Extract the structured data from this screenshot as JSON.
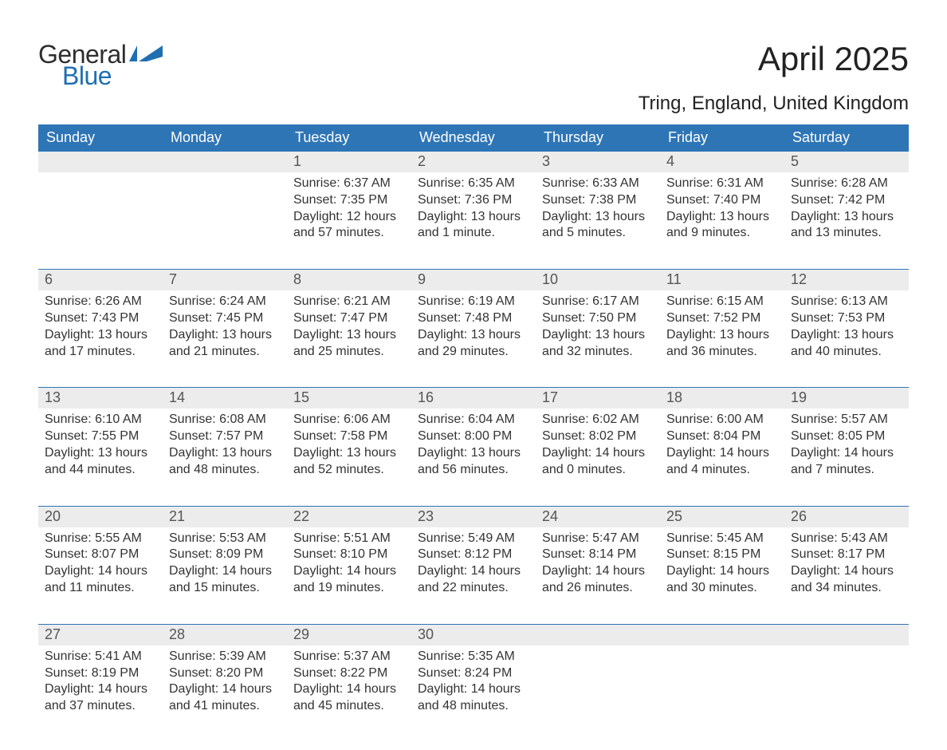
{
  "logo": {
    "line1": "General",
    "line2": "Blue",
    "text1_color": "#2e2e2e",
    "text2_color": "#1f6fb2",
    "icon_color": "#1f6fb2"
  },
  "title": {
    "month": "April 2025",
    "location": "Tring, England, United Kingdom"
  },
  "colors": {
    "header_bg": "#2e75b6",
    "header_text": "#ffffff",
    "daynum_bg": "#ececec",
    "daynum_text": "#555555",
    "body_text": "#333333",
    "page_bg": "#ffffff",
    "row_border": "#2e75b6"
  },
  "fonts": {
    "month_title_size": 42,
    "location_size": 24,
    "day_header_size": 18,
    "day_number_size": 18,
    "body_size": 16,
    "logo_size": 32
  },
  "day_headers": [
    "Sunday",
    "Monday",
    "Tuesday",
    "Wednesday",
    "Thursday",
    "Friday",
    "Saturday"
  ],
  "weeks": [
    [
      null,
      null,
      {
        "n": "1",
        "sunrise": "Sunrise: 6:37 AM",
        "sunset": "Sunset: 7:35 PM",
        "daylight": "Daylight: 12 hours and 57 minutes."
      },
      {
        "n": "2",
        "sunrise": "Sunrise: 6:35 AM",
        "sunset": "Sunset: 7:36 PM",
        "daylight": "Daylight: 13 hours and 1 minute."
      },
      {
        "n": "3",
        "sunrise": "Sunrise: 6:33 AM",
        "sunset": "Sunset: 7:38 PM",
        "daylight": "Daylight: 13 hours and 5 minutes."
      },
      {
        "n": "4",
        "sunrise": "Sunrise: 6:31 AM",
        "sunset": "Sunset: 7:40 PM",
        "daylight": "Daylight: 13 hours and 9 minutes."
      },
      {
        "n": "5",
        "sunrise": "Sunrise: 6:28 AM",
        "sunset": "Sunset: 7:42 PM",
        "daylight": "Daylight: 13 hours and 13 minutes."
      }
    ],
    [
      {
        "n": "6",
        "sunrise": "Sunrise: 6:26 AM",
        "sunset": "Sunset: 7:43 PM",
        "daylight": "Daylight: 13 hours and 17 minutes."
      },
      {
        "n": "7",
        "sunrise": "Sunrise: 6:24 AM",
        "sunset": "Sunset: 7:45 PM",
        "daylight": "Daylight: 13 hours and 21 minutes."
      },
      {
        "n": "8",
        "sunrise": "Sunrise: 6:21 AM",
        "sunset": "Sunset: 7:47 PM",
        "daylight": "Daylight: 13 hours and 25 minutes."
      },
      {
        "n": "9",
        "sunrise": "Sunrise: 6:19 AM",
        "sunset": "Sunset: 7:48 PM",
        "daylight": "Daylight: 13 hours and 29 minutes."
      },
      {
        "n": "10",
        "sunrise": "Sunrise: 6:17 AM",
        "sunset": "Sunset: 7:50 PM",
        "daylight": "Daylight: 13 hours and 32 minutes."
      },
      {
        "n": "11",
        "sunrise": "Sunrise: 6:15 AM",
        "sunset": "Sunset: 7:52 PM",
        "daylight": "Daylight: 13 hours and 36 minutes."
      },
      {
        "n": "12",
        "sunrise": "Sunrise: 6:13 AM",
        "sunset": "Sunset: 7:53 PM",
        "daylight": "Daylight: 13 hours and 40 minutes."
      }
    ],
    [
      {
        "n": "13",
        "sunrise": "Sunrise: 6:10 AM",
        "sunset": "Sunset: 7:55 PM",
        "daylight": "Daylight: 13 hours and 44 minutes."
      },
      {
        "n": "14",
        "sunrise": "Sunrise: 6:08 AM",
        "sunset": "Sunset: 7:57 PM",
        "daylight": "Daylight: 13 hours and 48 minutes."
      },
      {
        "n": "15",
        "sunrise": "Sunrise: 6:06 AM",
        "sunset": "Sunset: 7:58 PM",
        "daylight": "Daylight: 13 hours and 52 minutes."
      },
      {
        "n": "16",
        "sunrise": "Sunrise: 6:04 AM",
        "sunset": "Sunset: 8:00 PM",
        "daylight": "Daylight: 13 hours and 56 minutes."
      },
      {
        "n": "17",
        "sunrise": "Sunrise: 6:02 AM",
        "sunset": "Sunset: 8:02 PM",
        "daylight": "Daylight: 14 hours and 0 minutes."
      },
      {
        "n": "18",
        "sunrise": "Sunrise: 6:00 AM",
        "sunset": "Sunset: 8:04 PM",
        "daylight": "Daylight: 14 hours and 4 minutes."
      },
      {
        "n": "19",
        "sunrise": "Sunrise: 5:57 AM",
        "sunset": "Sunset: 8:05 PM",
        "daylight": "Daylight: 14 hours and 7 minutes."
      }
    ],
    [
      {
        "n": "20",
        "sunrise": "Sunrise: 5:55 AM",
        "sunset": "Sunset: 8:07 PM",
        "daylight": "Daylight: 14 hours and 11 minutes."
      },
      {
        "n": "21",
        "sunrise": "Sunrise: 5:53 AM",
        "sunset": "Sunset: 8:09 PM",
        "daylight": "Daylight: 14 hours and 15 minutes."
      },
      {
        "n": "22",
        "sunrise": "Sunrise: 5:51 AM",
        "sunset": "Sunset: 8:10 PM",
        "daylight": "Daylight: 14 hours and 19 minutes."
      },
      {
        "n": "23",
        "sunrise": "Sunrise: 5:49 AM",
        "sunset": "Sunset: 8:12 PM",
        "daylight": "Daylight: 14 hours and 22 minutes."
      },
      {
        "n": "24",
        "sunrise": "Sunrise: 5:47 AM",
        "sunset": "Sunset: 8:14 PM",
        "daylight": "Daylight: 14 hours and 26 minutes."
      },
      {
        "n": "25",
        "sunrise": "Sunrise: 5:45 AM",
        "sunset": "Sunset: 8:15 PM",
        "daylight": "Daylight: 14 hours and 30 minutes."
      },
      {
        "n": "26",
        "sunrise": "Sunrise: 5:43 AM",
        "sunset": "Sunset: 8:17 PM",
        "daylight": "Daylight: 14 hours and 34 minutes."
      }
    ],
    [
      {
        "n": "27",
        "sunrise": "Sunrise: 5:41 AM",
        "sunset": "Sunset: 8:19 PM",
        "daylight": "Daylight: 14 hours and 37 minutes."
      },
      {
        "n": "28",
        "sunrise": "Sunrise: 5:39 AM",
        "sunset": "Sunset: 8:20 PM",
        "daylight": "Daylight: 14 hours and 41 minutes."
      },
      {
        "n": "29",
        "sunrise": "Sunrise: 5:37 AM",
        "sunset": "Sunset: 8:22 PM",
        "daylight": "Daylight: 14 hours and 45 minutes."
      },
      {
        "n": "30",
        "sunrise": "Sunrise: 5:35 AM",
        "sunset": "Sunset: 8:24 PM",
        "daylight": "Daylight: 14 hours and 48 minutes."
      },
      null,
      null,
      null
    ]
  ]
}
